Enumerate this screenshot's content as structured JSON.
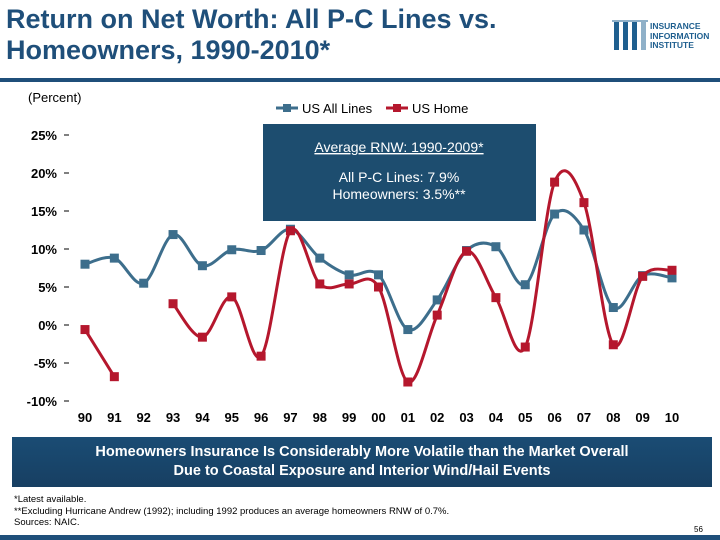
{
  "title": "Return on Net Worth: All P-C Lines vs. Homeowners, 1990-2010*",
  "logo": {
    "lines": [
      "INSURANCE",
      "INFORMATION",
      "INSTITUTE"
    ],
    "icon": "iii-logo-icon"
  },
  "unit_label": "(Percent)",
  "annotation": {
    "heading": "Average RNW: 1990-2009*",
    "line1": "All P-C Lines: 7.9%",
    "line2": "Homeowners: 3.5%**"
  },
  "banner": {
    "line1": "Homeowners Insurance Is Considerably More Volatile than the Market Overall",
    "line2": "Due to Coastal Exposure and Interior Wind/Hail Events"
  },
  "footnotes": [
    "*Latest available.",
    "**Excluding Hurricane Andrew (1992); including 1992 produces an average homeowners RNW of 0.7%.",
    "Sources: NAIC."
  ],
  "page_number": "56",
  "colors": {
    "title": "#1f4f7a",
    "all_lines": "#3d6e8c",
    "home": "#b5172d",
    "banner": "#1a4c74",
    "annotation_box": "#1d4d6f"
  },
  "chart_data": {
    "type": "line",
    "categories": [
      "90",
      "91",
      "92",
      "93",
      "94",
      "95",
      "96",
      "97",
      "98",
      "99",
      "00",
      "01",
      "02",
      "03",
      "04",
      "05",
      "06",
      "07",
      "08",
      "09",
      "10"
    ],
    "y_tick_labels": [
      "25%",
      "20%",
      "15%",
      "10%",
      "5%",
      "0%",
      "-5%",
      "-10%"
    ],
    "y_ticks": [
      25,
      20,
      15,
      10,
      5,
      0,
      -5,
      -10
    ],
    "ylim": [
      -10,
      25
    ],
    "legend_position": "top-center",
    "series": [
      {
        "name": "US All Lines",
        "marker": "square",
        "values": [
          8.0,
          8.8,
          5.5,
          11.9,
          7.8,
          9.9,
          9.8,
          12.6,
          8.8,
          6.6,
          6.6,
          -0.6,
          3.3,
          9.8,
          10.3,
          5.3,
          14.6,
          12.5,
          2.3,
          6.5,
          6.2
        ]
      },
      {
        "name": "US Home",
        "marker": "square",
        "values": [
          -0.6,
          -6.8,
          null,
          2.8,
          -1.6,
          3.7,
          -4.1,
          12.4,
          5.4,
          5.4,
          5.0,
          -7.5,
          1.3,
          9.7,
          3.6,
          -2.9,
          18.8,
          16.1,
          -2.6,
          6.4,
          7.2
        ]
      }
    ]
  }
}
